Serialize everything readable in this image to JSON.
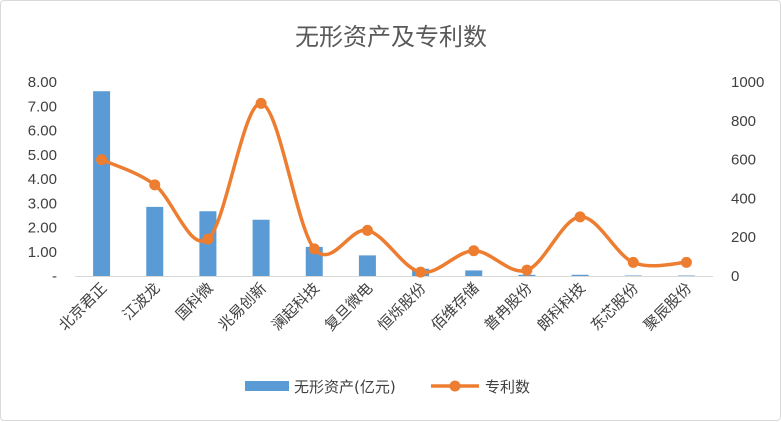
{
  "chart_data": {
    "type": "bar+line",
    "title": "无形资产及专利数",
    "categories": [
      "北京君正",
      "江波龙",
      "国科微",
      "兆易创新",
      "澜起科技",
      "复旦微电",
      "恒烁股份",
      "佰维存储",
      "普冉股份",
      "朗科科技",
      "东芯股份",
      "聚辰股份"
    ],
    "series": [
      {
        "name": "无形资产(亿元)",
        "type": "bar",
        "axis": "left",
        "color": "#5b9bd5",
        "values": [
          7.62,
          2.85,
          2.67,
          2.32,
          1.2,
          0.85,
          0.3,
          0.23,
          0.05,
          0.05,
          0.02,
          0.02
        ]
      },
      {
        "name": "专利数",
        "type": "line",
        "smooth": true,
        "axis": "right",
        "color": "#ed7d31",
        "values": [
          600,
          470,
          190,
          890,
          140,
          235,
          20,
          130,
          30,
          305,
          70,
          70
        ]
      }
    ],
    "y_left": {
      "min": 0,
      "max": 8,
      "ticks": [
        "-",
        "1.00",
        "2.00",
        "3.00",
        "4.00",
        "5.00",
        "6.00",
        "7.00",
        "8.00"
      ]
    },
    "y_right": {
      "min": 0,
      "max": 1000,
      "ticks": [
        "0",
        "200",
        "400",
        "600",
        "800",
        "1000"
      ]
    },
    "grid": false,
    "legend_position": "bottom"
  }
}
